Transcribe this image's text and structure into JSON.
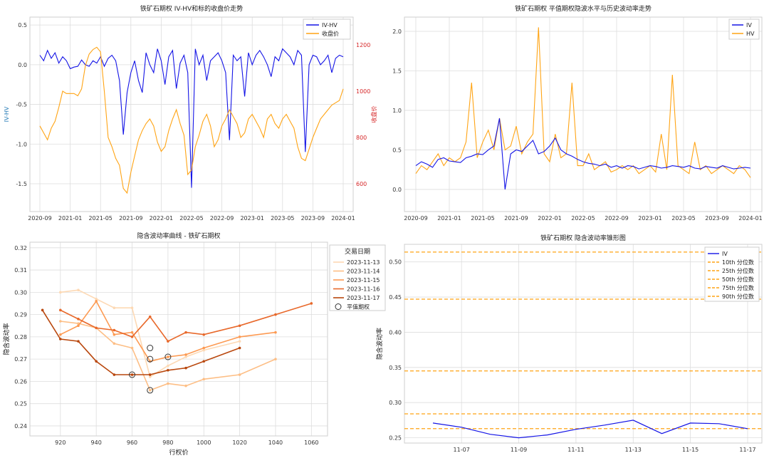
{
  "chart_data": [
    {
      "type": "line",
      "title": "铁矿石期权 IV-HV和标的收盘价走势",
      "xlabel": "",
      "ylabel": "IV-HV",
      "ylabel_right": "收盘价",
      "x_ticks": [
        "2020-09",
        "2021-01",
        "2021-05",
        "2021-09",
        "2022-01",
        "2022-05",
        "2022-09",
        "2023-01",
        "2023-05",
        "2023-09",
        "2024-01"
      ],
      "ylim": [
        -1.85,
        0.6
      ],
      "y_ticks": [
        0.5,
        0.0,
        -0.5,
        -1.0,
        -1.5
      ],
      "ylim_right": [
        480,
        1320
      ],
      "y_ticks_right": [
        600,
        800,
        1000,
        1200
      ],
      "series": [
        {
          "name": "IV-HV",
          "color": "#1414e6",
          "axis": "left",
          "x": [
            0,
            3,
            6,
            9,
            12,
            15,
            18,
            21,
            24,
            27,
            30,
            33,
            36,
            39,
            42,
            45,
            48,
            51,
            54,
            57,
            60,
            63,
            66,
            69,
            72,
            75,
            78,
            81,
            84,
            87,
            90,
            93,
            96,
            99,
            102,
            105,
            108,
            111,
            114,
            117,
            120,
            123,
            126,
            129,
            132,
            135,
            138,
            141,
            144,
            147,
            150,
            153,
            156,
            159,
            162,
            165,
            168,
            171,
            174,
            177,
            180,
            183,
            186,
            189,
            192,
            195,
            198,
            201,
            204,
            207,
            210,
            213,
            216,
            219,
            222,
            225,
            228,
            231,
            234,
            237,
            240
          ],
          "values": [
            0.12,
            0.05,
            0.18,
            0.08,
            0.15,
            0.02,
            0.1,
            0.05,
            -0.05,
            -0.03,
            -0.02,
            0.06,
            0.0,
            -0.02,
            0.05,
            0.02,
            0.1,
            -0.02,
            0.08,
            0.12,
            0.05,
            -0.2,
            -0.88,
            -0.35,
            -0.1,
            0.05,
            -0.2,
            -0.35,
            0.15,
            0.0,
            -0.1,
            0.2,
            0.05,
            -0.25,
            0.1,
            0.18,
            -0.3,
            0.02,
            0.12,
            -0.1,
            -1.55,
            0.2,
            0.0,
            0.12,
            -0.2,
            0.05,
            0.1,
            0.15,
            0.05,
            -0.1,
            -0.95,
            0.12,
            0.05,
            0.1,
            -0.4,
            0.15,
            0.0,
            0.12,
            0.18,
            0.1,
            0.0,
            -0.15,
            0.1,
            0.05,
            0.2,
            0.15,
            0.1,
            0.0,
            0.18,
            0.12,
            -1.1,
            0.0,
            0.12,
            0.1,
            0.0,
            0.05,
            0.12,
            -0.1,
            0.08,
            0.12,
            0.1
          ]
        },
        {
          "name": "收盘价",
          "color": "#ffa414",
          "axis": "right",
          "x": [
            0,
            3,
            6,
            9,
            12,
            15,
            18,
            21,
            24,
            27,
            30,
            33,
            36,
            39,
            42,
            45,
            48,
            51,
            54,
            57,
            60,
            63,
            66,
            69,
            72,
            75,
            78,
            81,
            84,
            87,
            90,
            93,
            96,
            99,
            102,
            105,
            108,
            111,
            114,
            117,
            120,
            123,
            126,
            129,
            132,
            135,
            138,
            141,
            144,
            147,
            150,
            153,
            156,
            159,
            162,
            165,
            168,
            171,
            174,
            177,
            180,
            183,
            186,
            189,
            192,
            195,
            198,
            201,
            204,
            207,
            210,
            213,
            216,
            219,
            222,
            225,
            228,
            231,
            234,
            237,
            240
          ],
          "values": [
            850,
            820,
            790,
            840,
            870,
            930,
            1000,
            990,
            990,
            990,
            980,
            1010,
            1110,
            1160,
            1180,
            1190,
            1170,
            1000,
            800,
            760,
            710,
            680,
            580,
            560,
            650,
            720,
            790,
            830,
            860,
            880,
            850,
            780,
            740,
            760,
            830,
            880,
            920,
            860,
            810,
            640,
            660,
            760,
            810,
            870,
            900,
            850,
            760,
            790,
            850,
            880,
            920,
            890,
            860,
            800,
            820,
            880,
            900,
            870,
            840,
            800,
            880,
            900,
            860,
            840,
            880,
            900,
            870,
            840,
            760,
            710,
            700,
            750,
            800,
            840,
            880,
            900,
            920,
            940,
            950,
            960,
            1010
          ]
        }
      ],
      "legend": "upper-right"
    },
    {
      "type": "line",
      "title": "铁矿石期权 平值期权隐波水平与历史波动率走势",
      "x_ticks": [
        "2020-09",
        "2021-01",
        "2021-05",
        "2021-09",
        "2022-01",
        "2022-05",
        "2022-09",
        "2023-01",
        "2023-05",
        "2023-09",
        "2024-01"
      ],
      "ylim": [
        -0.28,
        2.18
      ],
      "y_ticks": [
        0.0,
        0.5,
        1.0,
        1.5,
        2.0
      ],
      "series": [
        {
          "name": "IV",
          "color": "#1414e6",
          "x": [
            0,
            4,
            8,
            12,
            16,
            20,
            24,
            28,
            32,
            36,
            40,
            44,
            48,
            52,
            56,
            60,
            64,
            68,
            72,
            76,
            80,
            84,
            88,
            92,
            96,
            100,
            104,
            108,
            112,
            116,
            120,
            124,
            128,
            132,
            136,
            140,
            144,
            148,
            152,
            156,
            160,
            164,
            168,
            172,
            176,
            180,
            184,
            188,
            192,
            196,
            200,
            204,
            208,
            212,
            216,
            220,
            224,
            228,
            232,
            236,
            240
          ],
          "values": [
            0.3,
            0.35,
            0.32,
            0.28,
            0.38,
            0.4,
            0.36,
            0.35,
            0.34,
            0.4,
            0.42,
            0.45,
            0.44,
            0.5,
            0.55,
            0.9,
            0.0,
            0.45,
            0.5,
            0.48,
            0.55,
            0.62,
            0.45,
            0.48,
            0.55,
            0.65,
            0.5,
            0.45,
            0.42,
            0.38,
            0.35,
            0.33,
            0.32,
            0.3,
            0.32,
            0.28,
            0.3,
            0.27,
            0.3,
            0.29,
            0.26,
            0.28,
            0.3,
            0.29,
            0.27,
            0.28,
            0.3,
            0.29,
            0.28,
            0.3,
            0.27,
            0.26,
            0.29,
            0.28,
            0.27,
            0.3,
            0.28,
            0.26,
            0.27,
            0.28,
            0.27
          ]
        },
        {
          "name": "HV",
          "color": "#ffa414",
          "x": [
            0,
            4,
            8,
            12,
            16,
            20,
            24,
            28,
            32,
            36,
            40,
            44,
            48,
            52,
            56,
            60,
            64,
            68,
            72,
            76,
            80,
            84,
            88,
            92,
            96,
            100,
            104,
            108,
            112,
            116,
            120,
            124,
            128,
            132,
            136,
            140,
            144,
            148,
            152,
            156,
            160,
            164,
            168,
            172,
            176,
            180,
            184,
            188,
            192,
            196,
            200,
            204,
            208,
            212,
            216,
            220,
            224,
            228,
            232,
            236,
            240
          ],
          "values": [
            0.2,
            0.3,
            0.25,
            0.35,
            0.45,
            0.3,
            0.4,
            0.35,
            0.4,
            0.6,
            1.35,
            0.4,
            0.6,
            0.75,
            0.5,
            0.9,
            0.5,
            0.55,
            0.8,
            0.45,
            0.6,
            0.7,
            2.05,
            0.45,
            0.35,
            0.7,
            0.4,
            0.45,
            1.35,
            0.3,
            0.3,
            0.45,
            0.25,
            0.3,
            0.35,
            0.22,
            0.25,
            0.3,
            0.25,
            0.3,
            0.2,
            0.25,
            0.3,
            0.22,
            0.7,
            0.25,
            1.45,
            0.3,
            0.25,
            0.2,
            0.6,
            0.25,
            0.3,
            0.2,
            0.25,
            0.3,
            0.25,
            0.2,
            0.3,
            0.25,
            0.15
          ]
        }
      ],
      "legend": "upper-right"
    },
    {
      "type": "line",
      "title": "隐含波动率曲线 - 铁矿石期权",
      "xlabel": "行权价",
      "ylabel": "隐含波动率",
      "xlim": [
        903,
        1069
      ],
      "x_ticks": [
        920,
        940,
        960,
        980,
        1000,
        1020,
        1040,
        1060
      ],
      "ylim": [
        0.2355,
        0.3225
      ],
      "y_ticks": [
        0.24,
        0.25,
        0.26,
        0.27,
        0.28,
        0.29,
        0.3,
        0.31,
        0.32
      ],
      "legend_title": "交易日期",
      "series": [
        {
          "name": "2023-11-13",
          "color": "#fdd9b4",
          "x": [
            920,
            930,
            940,
            950,
            960,
            970,
            980,
            990,
            1000,
            1020
          ],
          "values": [
            0.3,
            0.301,
            0.297,
            0.293,
            0.293,
            0.262,
            0.267,
            0.271,
            0.274,
            0.278
          ]
        },
        {
          "name": "2023-11-14",
          "color": "#fdbe85",
          "x": [
            920,
            930,
            940,
            950,
            960,
            970,
            980,
            990,
            1000,
            1020,
            1040
          ],
          "values": [
            0.287,
            0.286,
            0.284,
            0.277,
            0.275,
            0.256,
            0.259,
            0.258,
            0.261,
            0.263,
            0.27
          ]
        },
        {
          "name": "2023-11-15",
          "color": "#fd9a52",
          "x": [
            920,
            930,
            940,
            950,
            960,
            970,
            980,
            990,
            1000,
            1020,
            1040
          ],
          "values": [
            0.281,
            0.285,
            0.296,
            0.281,
            0.282,
            0.269,
            0.271,
            0.272,
            0.275,
            0.28,
            0.282
          ]
        },
        {
          "name": "2023-11-16",
          "color": "#e8682a",
          "x": [
            920,
            930,
            940,
            950,
            960,
            970,
            980,
            990,
            1000,
            1020,
            1040,
            1060
          ],
          "values": [
            0.292,
            0.288,
            0.284,
            0.283,
            0.28,
            0.289,
            0.278,
            0.282,
            0.281,
            0.285,
            0.29,
            0.295
          ]
        },
        {
          "name": "2023-11-17",
          "color": "#b9470d",
          "x": [
            910,
            920,
            930,
            940,
            950,
            960,
            970,
            980,
            990,
            1000,
            1020
          ],
          "values": [
            0.292,
            0.279,
            0.278,
            0.269,
            0.263,
            0.263,
            0.263,
            0.265,
            0.266,
            0.269,
            0.275
          ]
        }
      ],
      "atm": {
        "name": "平值期权",
        "x": [
          960,
          970,
          970,
          980,
          970
        ],
        "values": [
          0.263,
          0.275,
          0.27,
          0.271,
          0.256
        ]
      }
    },
    {
      "type": "line",
      "title": "铁矿石期权 隐含波动率锥形图",
      "ylabel": "隐含波动率",
      "x_ticks": [
        "11-07",
        "11-09",
        "11-11",
        "11-13",
        "11-15",
        "11-17"
      ],
      "ylim": [
        0.2425,
        0.525
      ],
      "y_ticks": [
        0.25,
        0.3,
        0.35,
        0.4,
        0.45,
        0.5
      ],
      "series": [
        {
          "name": "IV",
          "color": "#1414e6",
          "x": [
            0,
            1,
            2,
            3,
            4,
            5,
            6,
            7,
            8,
            9,
            10,
            11
          ],
          "values": [
            0.271,
            0.265,
            0.255,
            0.25,
            0.254,
            0.262,
            0.268,
            0.275,
            0.256,
            0.271,
            0.27,
            0.263
          ]
        }
      ],
      "percentiles": [
        {
          "name": "10th 分位数",
          "value": 0.263
        },
        {
          "name": "25th 分位数",
          "value": 0.284
        },
        {
          "name": "50th 分位数",
          "value": 0.345
        },
        {
          "name": "75th 分位数",
          "value": 0.447
        },
        {
          "name": "90th 分位数",
          "value": 0.514
        }
      ],
      "percentile_color": "#ffa414"
    }
  ]
}
